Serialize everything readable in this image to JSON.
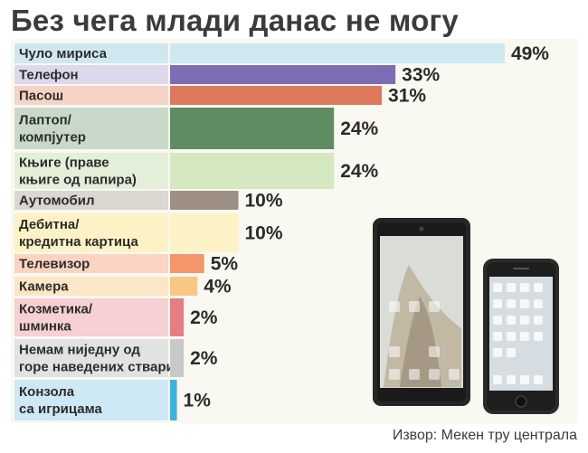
{
  "title": "Без чега млади данас не могу",
  "source": "Извор: Мекен тру централа",
  "chart_data": {
    "type": "bar",
    "orientation": "horizontal",
    "title": "Без чега млади данас не могу",
    "categories": [
      "Чуло мириса",
      "Телефон",
      "Пасош",
      "Лаптоп/ компјутер",
      "Књиге (праве књиге од папира)",
      "Аутомобил",
      "Дебитна/ кредитна картица",
      "Телевизор",
      "Камера",
      "Козметика/ шминка",
      "Немам ниједну од горе наведених ствари",
      "Конзола са игрицама"
    ],
    "category_lines": [
      [
        "Чуло мириса"
      ],
      [
        "Телефон"
      ],
      [
        "Пасош"
      ],
      [
        "Лаптоп/",
        "компјутер"
      ],
      [
        "Књиге (праве",
        "књиге од папира)"
      ],
      [
        "Аутомобил"
      ],
      [
        "Дебитна/",
        "кредитна картица"
      ],
      [
        "Телевизор"
      ],
      [
        "Камера"
      ],
      [
        "Козметика/",
        "шминка"
      ],
      [
        "Немам ниједну од",
        "горе наведених ствари"
      ],
      [
        "Конзола",
        "са игрицама"
      ]
    ],
    "values": [
      49,
      33,
      31,
      24,
      24,
      10,
      10,
      5,
      4,
      2,
      2,
      1
    ],
    "value_labels": [
      "49%",
      "33%",
      "31%",
      "24%",
      "24%",
      "10%",
      "10%",
      "5%",
      "4%",
      "2%",
      "2%",
      "1%"
    ],
    "unit": "%",
    "colors": [
      "#cfe7ef",
      "#7c6db5",
      "#dd7a5c",
      "#5f8c63",
      "#d4e8c1",
      "#9e8f84",
      "#fdf2c6",
      "#f4956a",
      "#f9c784",
      "#e57d82",
      "#c9c9c9",
      "#39b4dc"
    ],
    "label_backgrounds": [
      "#cfe7ef",
      "#ddd8ec",
      "#f5d3c6",
      "#c9d9c9",
      "#e4efd9",
      "#dcd6d1",
      "#fdf2c6",
      "#fbd4c1",
      "#fde6c5",
      "#f6d0d2",
      "#e2e2e2",
      "#cfe8f5"
    ]
  }
}
